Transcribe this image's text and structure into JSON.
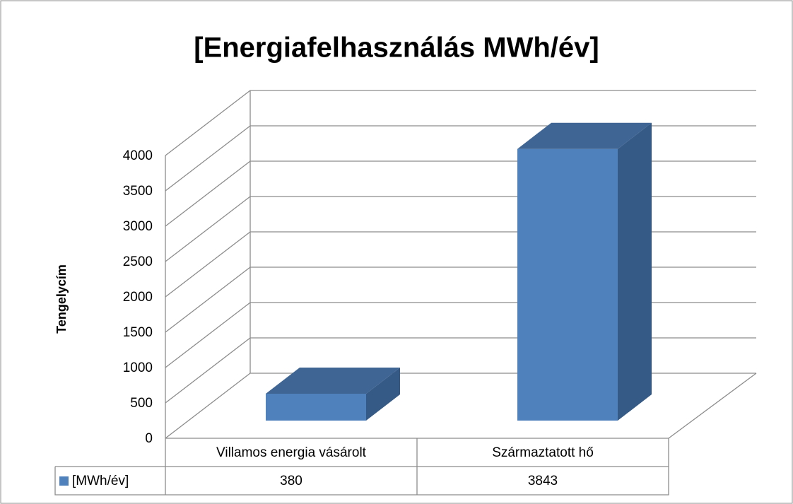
{
  "chart_data": {
    "type": "bar",
    "title": "[Energiafelhasználás MWh/év]",
    "y_label": "Tengelycím",
    "categories": [
      "Villamos energia vásárolt",
      "Származtatott  hő"
    ],
    "series": [
      {
        "name": "[MWh/év]",
        "color": "#4f81bd",
        "values": [
          380,
          3843
        ]
      }
    ],
    "ylim": [
      0,
      4000
    ],
    "yticks": [
      0,
      500,
      1000,
      1500,
      2000,
      2500,
      3000,
      3500,
      4000
    ],
    "grid": true
  }
}
